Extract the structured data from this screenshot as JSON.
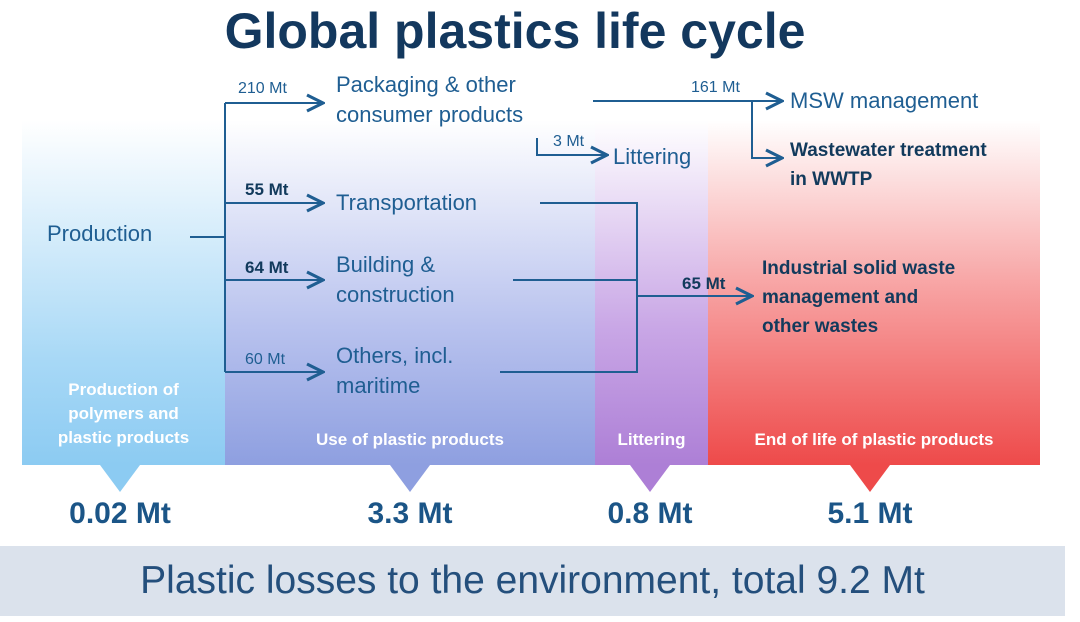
{
  "title": "Global plastics life cycle",
  "nodes": {
    "production": "Production",
    "packaging": "Packaging & other\nconsumer products",
    "transportation": "Transportation",
    "building": "Building &\nconstruction",
    "others": "Others, incl.\nmaritime",
    "littering": "Littering",
    "msw": "MSW management",
    "wastewater": "Wastewater treatment\nin WWTP",
    "industrial": "Industrial solid waste\nmanagement and\nother wastes"
  },
  "flows": {
    "packaging": "210 Mt",
    "transportation": "55 Mt",
    "building": "64 Mt",
    "others": "60 Mt",
    "msw": "161 Mt",
    "littering": "3 Mt",
    "industrial": "65 Mt"
  },
  "stages": [
    {
      "label": "Production of\npolymers and\nplastic products",
      "loss": "0.02 Mt"
    },
    {
      "label": "Use of plastic products",
      "loss": "3.3 Mt"
    },
    {
      "label": "Littering",
      "loss": "0.8 Mt"
    },
    {
      "label": "End of life of plastic products",
      "loss": "5.1 Mt"
    }
  ],
  "footer": "Plastic losses to the environment, total 9.2 Mt"
}
